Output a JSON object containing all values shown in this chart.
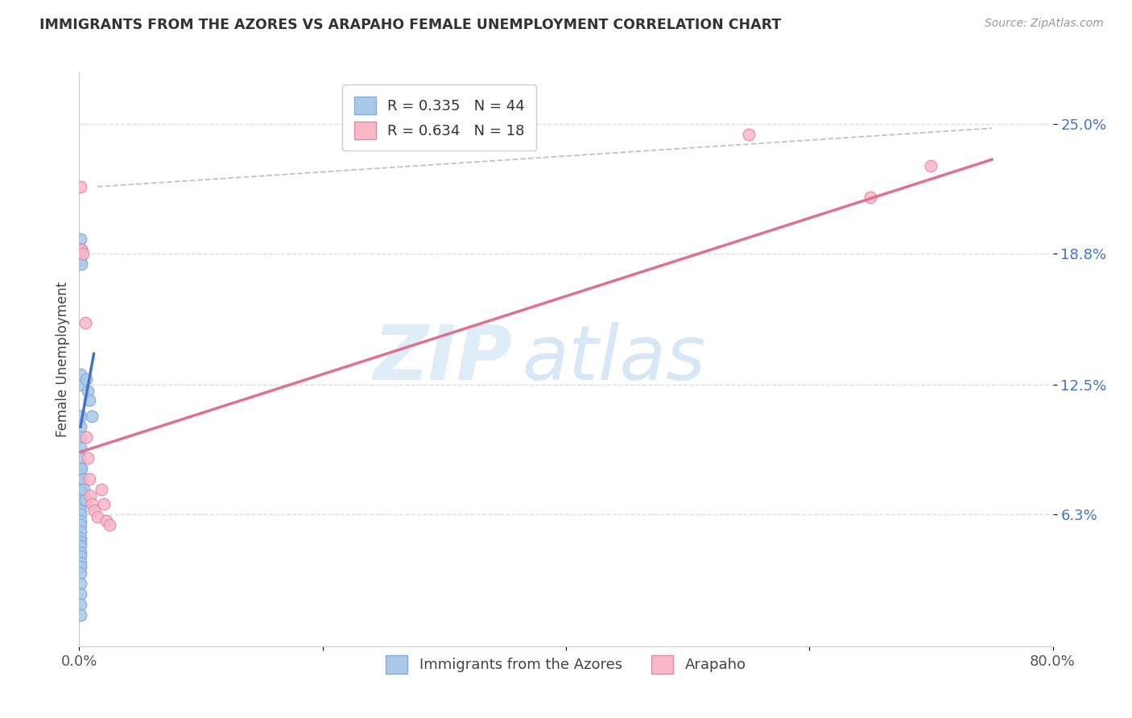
{
  "title": "IMMIGRANTS FROM THE AZORES VS ARAPAHO FEMALE UNEMPLOYMENT CORRELATION CHART",
  "source": "Source: ZipAtlas.com",
  "ylabel_label": "Female Unemployment",
  "watermark_zip": "ZIP",
  "watermark_atlas": "atlas",
  "blue_scatter": [
    [
      0.001,
      0.195
    ],
    [
      0.002,
      0.19
    ],
    [
      0.001,
      0.185
    ],
    [
      0.002,
      0.183
    ],
    [
      0.001,
      0.13
    ],
    [
      0.002,
      0.125
    ],
    [
      0.001,
      0.11
    ],
    [
      0.001,
      0.105
    ],
    [
      0.001,
      0.1
    ],
    [
      0.001,
      0.095
    ],
    [
      0.001,
      0.09
    ],
    [
      0.001,
      0.085
    ],
    [
      0.001,
      0.082
    ],
    [
      0.001,
      0.08
    ],
    [
      0.001,
      0.078
    ],
    [
      0.001,
      0.075
    ],
    [
      0.001,
      0.073
    ],
    [
      0.001,
      0.07
    ],
    [
      0.001,
      0.068
    ],
    [
      0.001,
      0.065
    ],
    [
      0.001,
      0.063
    ],
    [
      0.001,
      0.06
    ],
    [
      0.001,
      0.058
    ],
    [
      0.001,
      0.055
    ],
    [
      0.001,
      0.052
    ],
    [
      0.001,
      0.05
    ],
    [
      0.001,
      0.048
    ],
    [
      0.001,
      0.045
    ],
    [
      0.001,
      0.043
    ],
    [
      0.001,
      0.04
    ],
    [
      0.001,
      0.038
    ],
    [
      0.001,
      0.035
    ],
    [
      0.001,
      0.03
    ],
    [
      0.001,
      0.025
    ],
    [
      0.001,
      0.02
    ],
    [
      0.001,
      0.015
    ],
    [
      0.002,
      0.085
    ],
    [
      0.003,
      0.08
    ],
    [
      0.004,
      0.075
    ],
    [
      0.005,
      0.07
    ],
    [
      0.006,
      0.128
    ],
    [
      0.007,
      0.122
    ],
    [
      0.008,
      0.118
    ],
    [
      0.01,
      0.11
    ]
  ],
  "pink_scatter": [
    [
      0.001,
      0.22
    ],
    [
      0.002,
      0.19
    ],
    [
      0.003,
      0.188
    ],
    [
      0.005,
      0.155
    ],
    [
      0.006,
      0.1
    ],
    [
      0.007,
      0.09
    ],
    [
      0.008,
      0.08
    ],
    [
      0.009,
      0.072
    ],
    [
      0.01,
      0.068
    ],
    [
      0.012,
      0.065
    ],
    [
      0.015,
      0.062
    ],
    [
      0.018,
      0.075
    ],
    [
      0.02,
      0.068
    ],
    [
      0.022,
      0.06
    ],
    [
      0.025,
      0.058
    ],
    [
      0.55,
      0.245
    ],
    [
      0.65,
      0.215
    ],
    [
      0.7,
      0.23
    ]
  ],
  "blue_line": {
    "x": [
      0.001,
      0.012
    ],
    "y": [
      0.105,
      0.14
    ]
  },
  "pink_line": {
    "x": [
      0.001,
      0.75
    ],
    "y": [
      0.093,
      0.233
    ]
  },
  "gray_dashed": {
    "x": [
      0.015,
      0.75
    ],
    "y": [
      0.22,
      0.248
    ]
  },
  "xlim": [
    0.0,
    0.8
  ],
  "ylim": [
    0.0,
    0.275
  ],
  "ytick_positions": [
    0.063,
    0.125,
    0.188,
    0.25
  ],
  "ytick_labels": [
    "6.3%",
    "12.5%",
    "18.8%",
    "25.0%"
  ],
  "xtick_positions": [
    0.0,
    0.2,
    0.4,
    0.6,
    0.8
  ],
  "xtick_labels": [
    "0.0%",
    "",
    "",
    "",
    "80.0%"
  ],
  "background_color": "#ffffff",
  "grid_color": "#dddddd",
  "blue_color": "#aac8e8",
  "blue_edge": "#88aad8",
  "pink_color": "#f8b8c8",
  "pink_edge": "#e888a8"
}
